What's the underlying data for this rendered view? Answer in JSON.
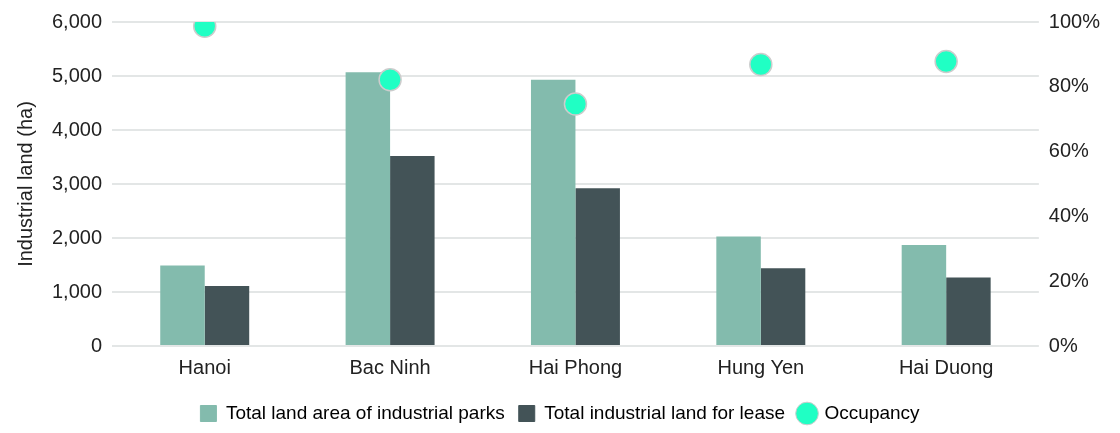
{
  "chart_data": {
    "type": "bar",
    "ylabel": "Industrial land (ha)",
    "categories": [
      "Hanoi",
      "Bac Ninh",
      "Hai Phong",
      "Hung Yen",
      "Hai Duong"
    ],
    "series": [
      {
        "name": "Total land area of industrial parks",
        "color": "#83bbad",
        "values": [
          1490,
          5070,
          4930,
          2030,
          1870
        ]
      },
      {
        "name": "Total industrial land for lease",
        "color": "#435357",
        "values": [
          1110,
          3520,
          2920,
          1440,
          1270
        ]
      },
      {
        "name": "Occupancy",
        "type": "scatter",
        "axis": "y2",
        "color": "#20ffc4",
        "marker": "circle",
        "values": [
          98.7,
          82.2,
          74.7,
          86.9,
          87.8
        ]
      }
    ],
    "ylim": [
      0,
      6000
    ],
    "yticks": [
      0,
      {
        "value": 1000,
        "label": "1,000"
      },
      {
        "value": 2000,
        "label": "2,000"
      },
      {
        "value": 3000,
        "label": "3,000"
      },
      {
        "value": 4000,
        "label": "4,000"
      },
      {
        "value": 5000,
        "label": "5,000"
      },
      {
        "value": 6000,
        "label": "6,000"
      }
    ],
    "y2lim": [
      0,
      100
    ],
    "y2ticks": [
      {
        "value": 0,
        "label": "0%"
      },
      {
        "value": 20,
        "label": "20%"
      },
      {
        "value": 40,
        "label": "40%"
      },
      {
        "value": 60,
        "label": "60%"
      },
      {
        "value": 80,
        "label": "80%"
      },
      {
        "value": 100,
        "label": "100%"
      }
    ],
    "grid": "y",
    "legend": "bottom"
  }
}
